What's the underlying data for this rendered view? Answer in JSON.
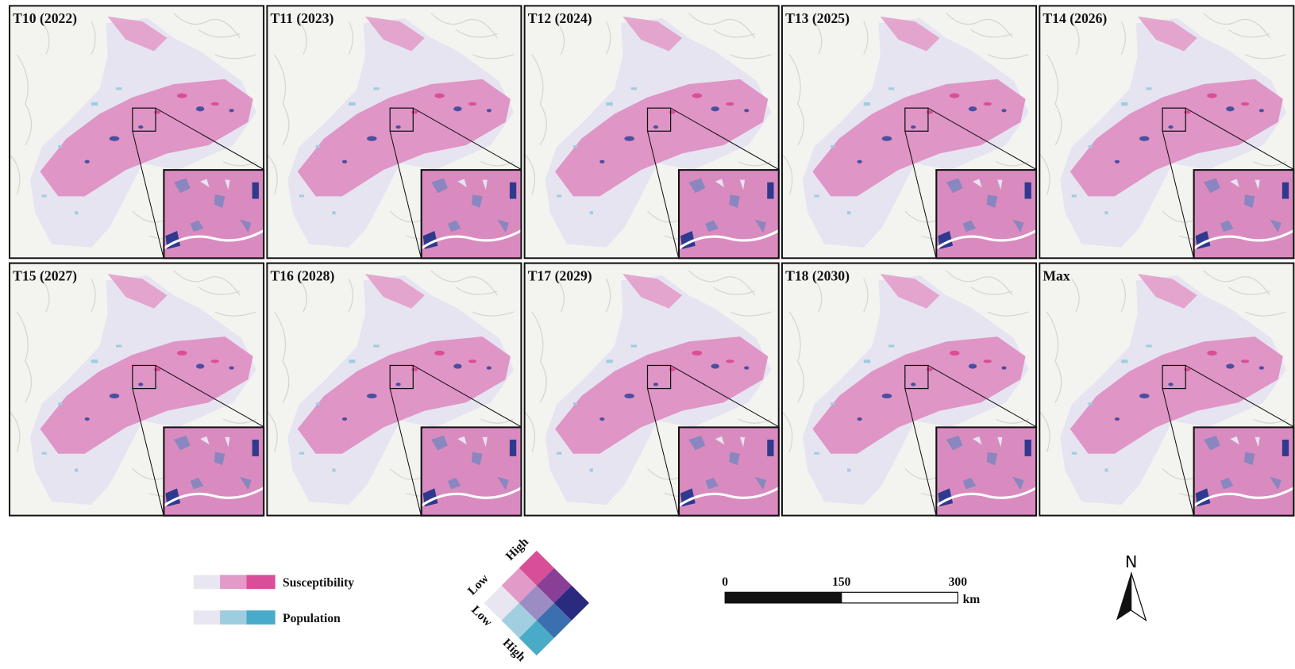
{
  "panels": [
    {
      "title": "T10 (2022)"
    },
    {
      "title": "T11 (2023)"
    },
    {
      "title": "T12 (2024)"
    },
    {
      "title": "T13 (2025)"
    },
    {
      "title": "T14 (2026)"
    },
    {
      "title": "T15 (2027)"
    },
    {
      "title": "T16 (2028)"
    },
    {
      "title": "T17 (2029)"
    },
    {
      "title": "T18 (2030)"
    },
    {
      "title": "Max"
    }
  ],
  "legend": {
    "susceptibility": "Susceptibility",
    "population": "Population",
    "bivariate": {
      "top": "High",
      "upper_left": "Low",
      "lower_left": "Low",
      "bottom": "High"
    }
  },
  "scale_bar": {
    "ticks": [
      0,
      150,
      300
    ],
    "unit": "km"
  },
  "north": "N"
}
